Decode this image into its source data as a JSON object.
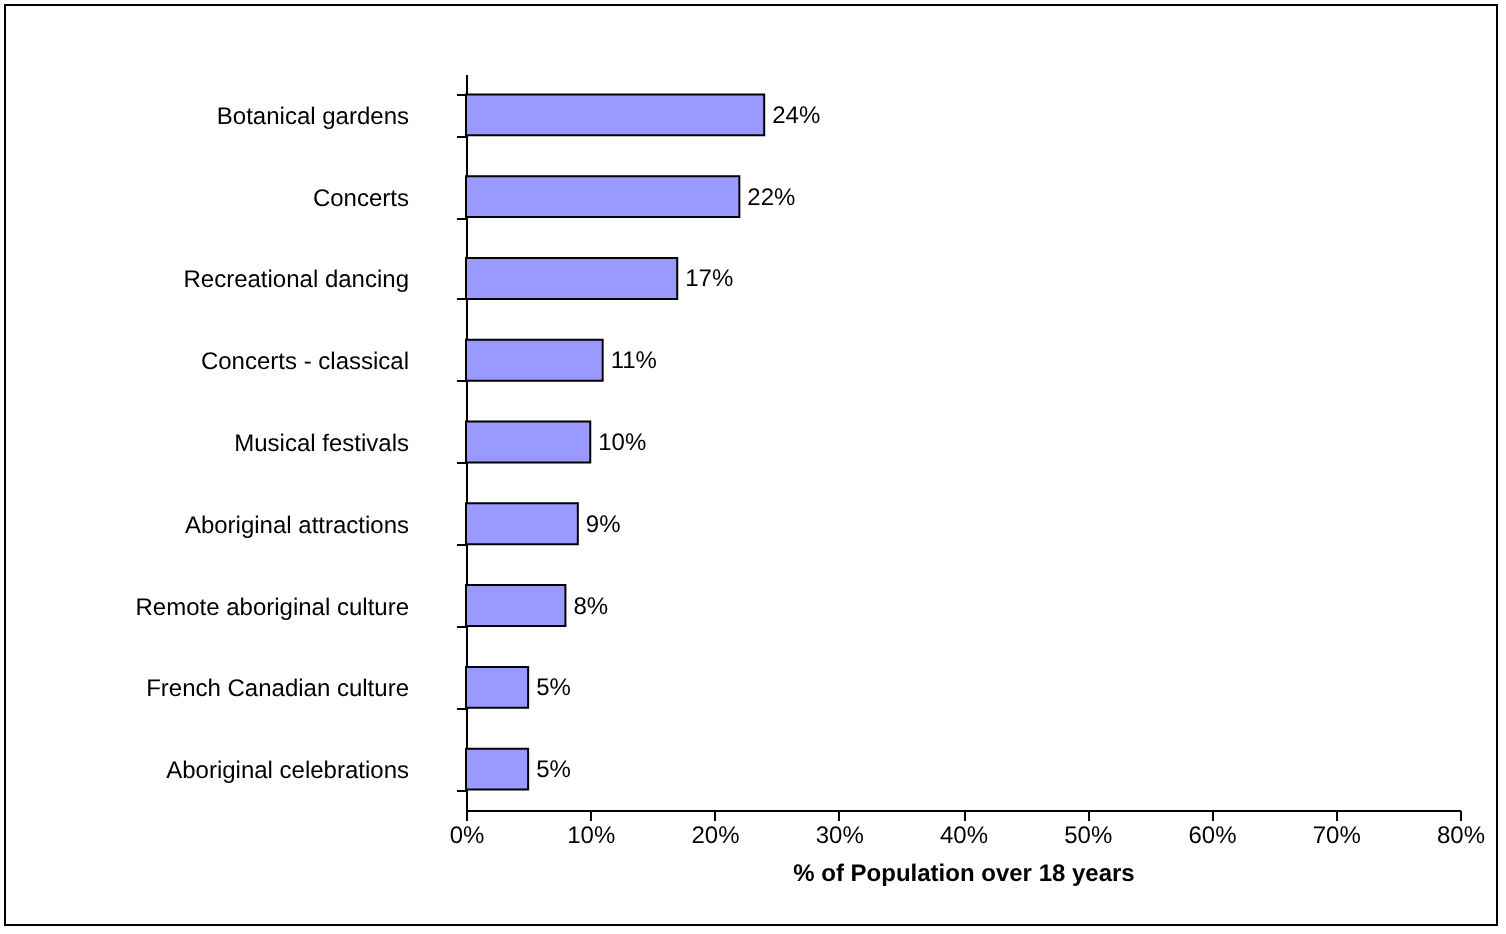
{
  "chart_data": {
    "type": "bar",
    "orientation": "horizontal",
    "xlabel": "% of Population over 18 years",
    "categories": [
      "Botanical gardens",
      "Concerts",
      "Recreational dancing",
      "Concerts - classical",
      "Musical festivals",
      "Aboriginal attractions",
      "Remote aboriginal culture",
      "French Canadian culture",
      "Aboriginal celebrations"
    ],
    "values": [
      24,
      22,
      17,
      11,
      10,
      9,
      8,
      5,
      5
    ],
    "value_labels": [
      "24%",
      "22%",
      "17%",
      "11%",
      "10%",
      "9%",
      "8%",
      "5%",
      "5%"
    ],
    "color": "#9999ff",
    "xlim": [
      0,
      80
    ],
    "xticks": [
      {
        "value": 0,
        "label": "0%"
      },
      {
        "value": 10,
        "label": "10%"
      },
      {
        "value": 20,
        "label": "20%"
      },
      {
        "value": 30,
        "label": "30%"
      },
      {
        "value": 40,
        "label": "40%"
      },
      {
        "value": 50,
        "label": "50%"
      },
      {
        "value": 60,
        "label": "60%"
      },
      {
        "value": 70,
        "label": "70%"
      },
      {
        "value": 80,
        "label": "80%"
      }
    ],
    "grid": false
  }
}
